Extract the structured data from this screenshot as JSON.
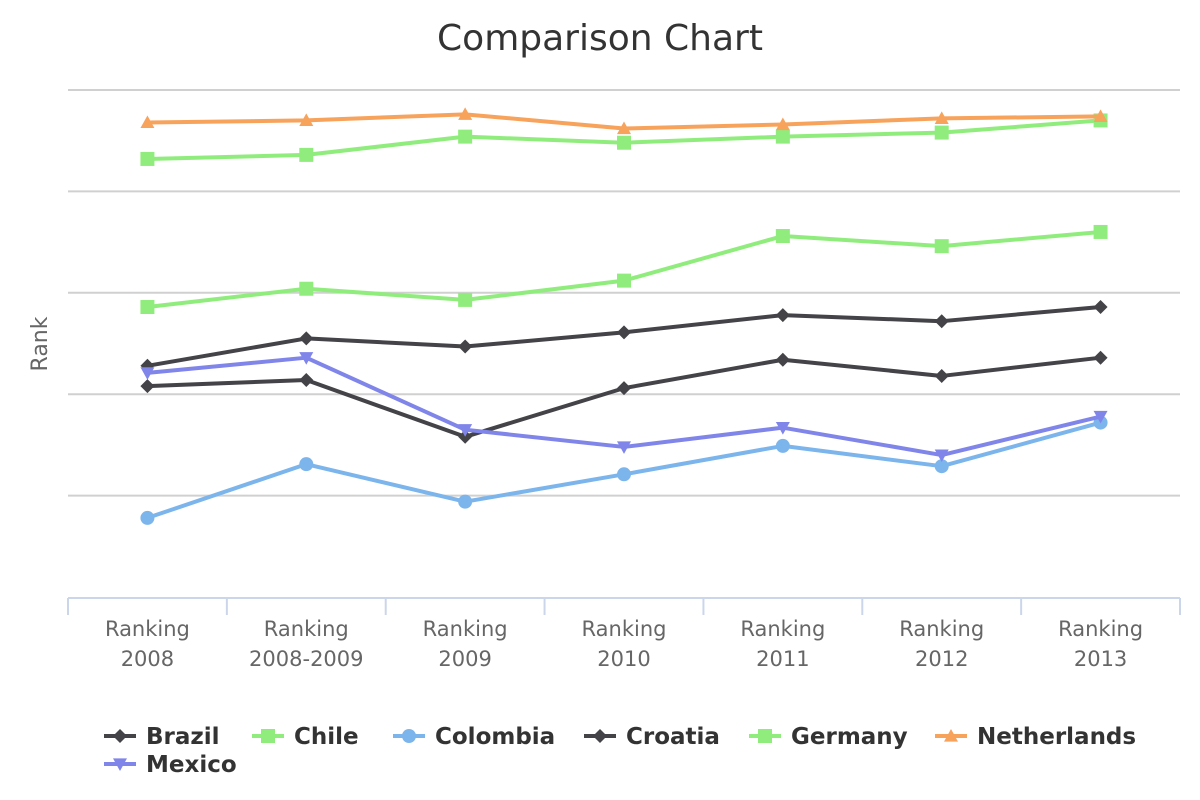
{
  "chart_data": {
    "type": "line",
    "title": "Comparison Chart",
    "xlabel": "",
    "ylabel": "Rank",
    "categories": [
      [
        "Ranking",
        "2008"
      ],
      [
        "Ranking",
        "2008-2009"
      ],
      [
        "Ranking",
        "2009"
      ],
      [
        "Ranking",
        "2010"
      ],
      [
        "Ranking",
        "2011"
      ],
      [
        "Ranking",
        "2012"
      ],
      [
        "Ranking",
        "2013"
      ]
    ],
    "ylim": [
      0,
      5
    ],
    "grid": true,
    "legend": "bottom",
    "series": [
      {
        "name": "Brazil",
        "color": "#434348",
        "marker": "diamond",
        "values": [
          2.28,
          2.55,
          2.47,
          2.61,
          2.78,
          2.72,
          2.86
        ]
      },
      {
        "name": "Chile",
        "color": "#90ed7d",
        "marker": "square",
        "values": [
          4.32,
          4.36,
          4.54,
          4.48,
          4.54,
          4.58,
          4.7
        ]
      },
      {
        "name": "Colombia",
        "color": "#7cb5ec",
        "marker": "circle",
        "values": [
          0.78,
          1.31,
          0.94,
          1.21,
          1.49,
          1.29,
          1.72
        ]
      },
      {
        "name": "Croatia",
        "color": "#434348",
        "marker": "diamond",
        "values": [
          2.08,
          2.14,
          1.58,
          2.06,
          2.34,
          2.18,
          2.36
        ]
      },
      {
        "name": "Germany",
        "color": "#90ed7d",
        "marker": "square",
        "values": [
          2.86,
          3.04,
          2.93,
          3.12,
          3.56,
          3.46,
          3.6
        ]
      },
      {
        "name": "Netherlands",
        "color": "#f7a35c",
        "marker": "triangle",
        "values": [
          4.68,
          4.7,
          4.76,
          4.62,
          4.66,
          4.72,
          4.74
        ]
      },
      {
        "name": "Mexico",
        "color": "#8085e9",
        "marker": "triangle-down",
        "values": [
          2.21,
          2.36,
          1.65,
          1.48,
          1.67,
          1.4,
          1.78
        ]
      }
    ]
  }
}
